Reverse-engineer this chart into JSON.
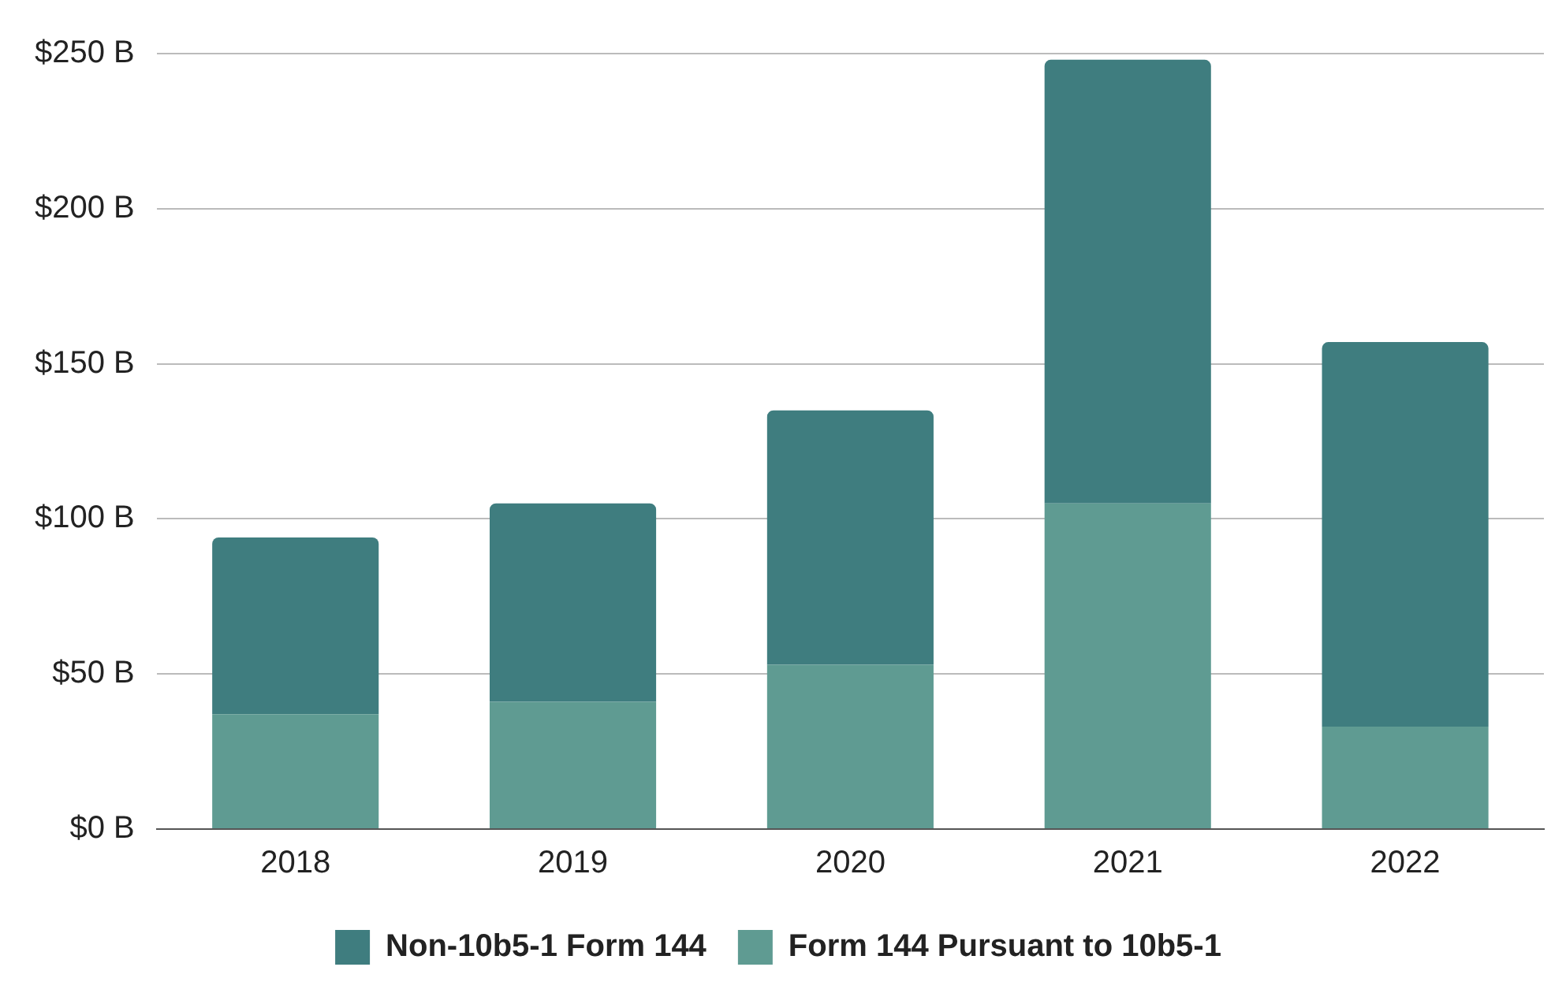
{
  "chart_data": {
    "type": "bar",
    "stacked": true,
    "categories": [
      "2018",
      "2019",
      "2020",
      "2021",
      "2022"
    ],
    "series": [
      {
        "name": "Form 144 Pursuant to 10b5-1",
        "color": "#5f9b92",
        "values": [
          37,
          41,
          53,
          105,
          33
        ]
      },
      {
        "name": "Non-10b5-1 Form 144",
        "color": "#3f7d7f",
        "values": [
          57,
          64,
          82,
          143,
          124
        ]
      }
    ],
    "ylim": [
      0,
      250
    ],
    "yticks": [
      {
        "value": 0,
        "label": "$0 B"
      },
      {
        "value": 50,
        "label": "$50 B"
      },
      {
        "value": 100,
        "label": "$100 B"
      },
      {
        "value": 150,
        "label": "$150 B"
      },
      {
        "value": 200,
        "label": "$200 B"
      },
      {
        "value": 250,
        "label": "$250 B"
      }
    ],
    "grid": "y",
    "legend": "bottom"
  }
}
